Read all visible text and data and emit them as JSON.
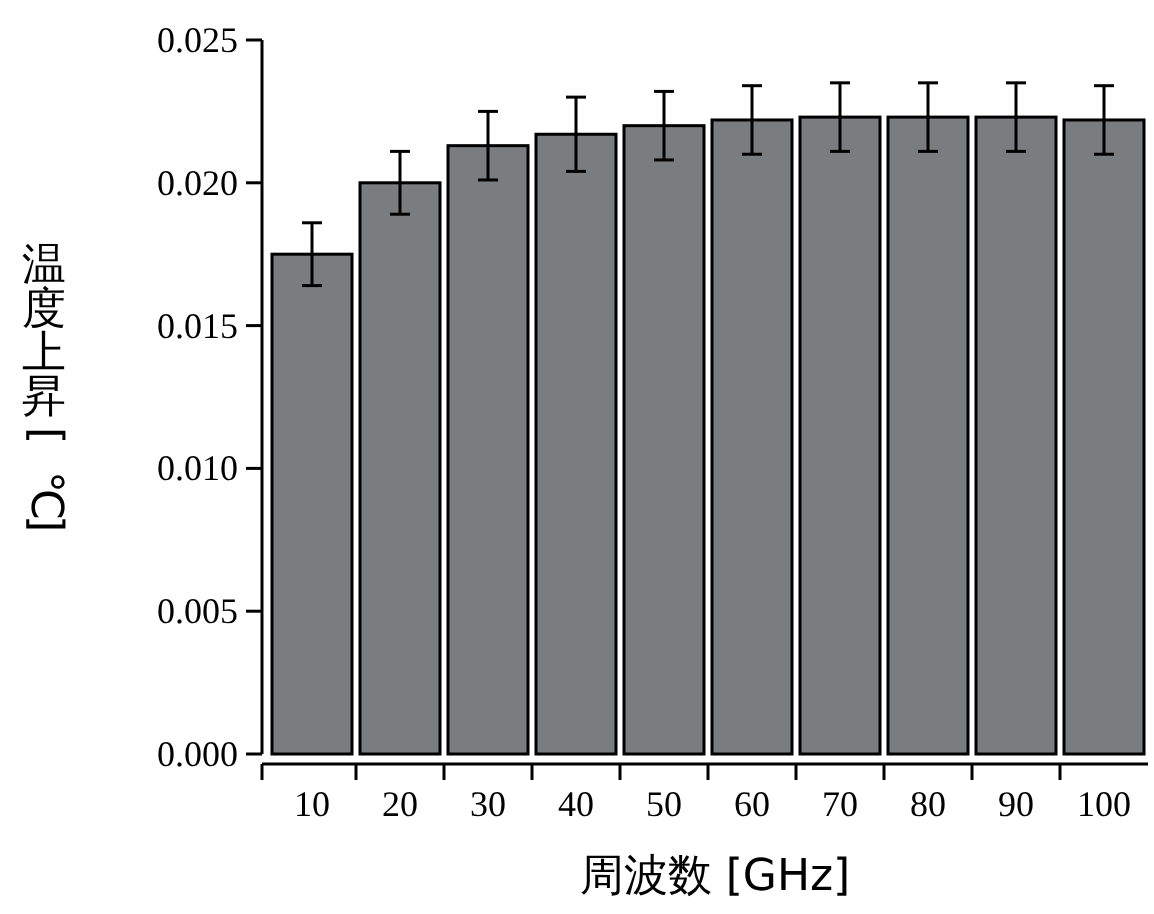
{
  "chart_data": {
    "type": "bar",
    "xlabel": "周波数 [GHz]",
    "ylabel": "温度上昇[℃]",
    "categories": [
      "10",
      "20",
      "30",
      "40",
      "50",
      "60",
      "70",
      "80",
      "90",
      "100"
    ],
    "values": [
      0.0175,
      0.02,
      0.0213,
      0.0217,
      0.022,
      0.0222,
      0.0223,
      0.0223,
      0.0223,
      0.0222
    ],
    "errors": [
      0.0011,
      0.0011,
      0.0012,
      0.0013,
      0.0012,
      0.0012,
      0.0012,
      0.0012,
      0.0012,
      0.0012
    ],
    "color": "#7a7d80",
    "ylim": [
      0,
      0.025
    ],
    "yticks": [
      {
        "value": 0,
        "label": "0.000"
      },
      {
        "value": 0.005,
        "label": "0.005"
      },
      {
        "value": 0.01,
        "label": "0.010"
      },
      {
        "value": 0.015,
        "label": "0.015"
      },
      {
        "value": 0.02,
        "label": "0.020"
      },
      {
        "value": 0.025,
        "label": "0.025"
      }
    ],
    "grid": false
  }
}
